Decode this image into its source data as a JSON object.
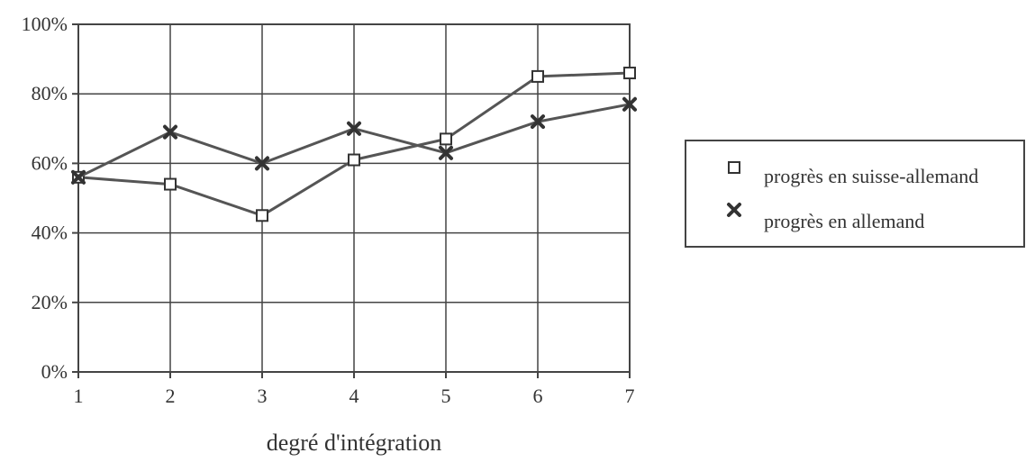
{
  "chart_data": {
    "type": "line",
    "title": "",
    "xlabel": "degré d'intégration",
    "ylabel": "",
    "x": [
      1,
      2,
      3,
      4,
      5,
      6,
      7
    ],
    "x_ticks": [
      "1",
      "2",
      "3",
      "4",
      "5",
      "6",
      "7"
    ],
    "y_ticks": [
      "0%",
      "20%",
      "40%",
      "60%",
      "80%",
      "100%"
    ],
    "ylim": [
      0,
      100
    ],
    "grid": true,
    "legend_position": "right",
    "series": [
      {
        "name": "progrès en suisse-allemand",
        "marker": "square",
        "values": [
          56,
          54,
          45,
          61,
          67,
          85,
          86
        ]
      },
      {
        "name": "progrès en allemand",
        "marker": "x",
        "values": [
          56,
          69,
          60,
          70,
          63,
          72,
          77
        ]
      }
    ],
    "colors": {
      "line": "#555555",
      "grid": "#444444",
      "text": "#333333"
    }
  }
}
